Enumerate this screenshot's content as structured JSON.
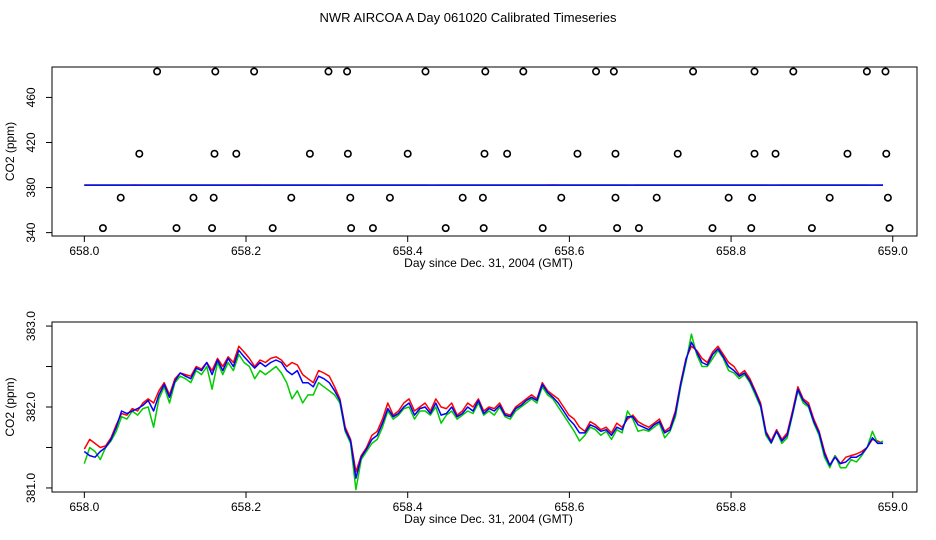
{
  "title": "NWR AIRCOA A  Day 061020  Calibrated Timeseries",
  "chart_data": [
    {
      "type": "scatter",
      "title": "",
      "xlabel": "Day since Dec. 31, 2004 (GMT)",
      "ylabel": "CO2 (ppm)",
      "xlim": [
        657.96,
        659.03
      ],
      "ylim": [
        337,
        487
      ],
      "xticks": [
        658.0,
        658.2,
        658.4,
        658.6,
        658.8,
        659.0
      ],
      "xtick_labels": [
        "658.0",
        "658.2",
        "658.4",
        "658.6",
        "658.8",
        "659.0"
      ],
      "yticks": [
        340,
        380,
        420,
        460
      ],
      "ytick_labels": [
        "340",
        "380",
        "420",
        "460"
      ],
      "points_x": [
        658.09,
        658.162,
        658.21,
        658.302,
        658.325,
        658.422,
        658.496,
        658.543,
        658.633,
        658.655,
        658.753,
        658.829,
        658.877,
        658.968,
        658.991,
        658.068,
        658.161,
        658.188,
        658.279,
        658.326,
        658.4,
        658.495,
        658.523,
        658.61,
        658.657,
        658.734,
        658.829,
        658.855,
        658.944,
        658.992,
        658.045,
        658.135,
        658.16,
        658.256,
        658.329,
        658.378,
        658.468,
        658.493,
        658.59,
        658.657,
        658.708,
        658.797,
        658.826,
        658.922,
        658.994,
        658.023,
        658.114,
        658.158,
        658.233,
        658.33,
        658.357,
        658.447,
        658.494,
        658.567,
        658.659,
        658.686,
        658.777,
        658.825,
        658.9,
        658.996
      ],
      "points_y": [
        483,
        483,
        483,
        483,
        483,
        483,
        483,
        483,
        483,
        483,
        483,
        483,
        483,
        483,
        483,
        410,
        410,
        410,
        410,
        410,
        410,
        410,
        410,
        410,
        410,
        410,
        410,
        410,
        410,
        410,
        371,
        371,
        371,
        371,
        371,
        371,
        371,
        371,
        371,
        371,
        371,
        371,
        371,
        371,
        371,
        344,
        344,
        344,
        344,
        344,
        344,
        344,
        344,
        344,
        344,
        344,
        344,
        344,
        344,
        344
      ],
      "series": [
        {
          "name": "red",
          "color": "#ff0000",
          "x_start": 658.0,
          "x_end": 658.988,
          "values": [
            382.2,
            382.2,
            382.2,
            382.2,
            382.2,
            382.3,
            382.2,
            382.2,
            382.2,
            382.2,
            382.2,
            382.2,
            382.2,
            382.2,
            382.2,
            382.2,
            382.2,
            382.3,
            382.2,
            382.2,
            382.2,
            382.2,
            382.2,
            382.2,
            382.2,
            382.2,
            382.2,
            382.2,
            382.2,
            382.2,
            382.2,
            382.2,
            382.2,
            382.2,
            382.2,
            382.2,
            382.2,
            382.2,
            382.2,
            382.2,
            382.2,
            382.2,
            382.2,
            382.2,
            382.2,
            382.2,
            382.2,
            382.3,
            382.2,
            382.2,
            382.2,
            382.2,
            382.2,
            382.2,
            382.2,
            382.2,
            382.2,
            382.2,
            382.2,
            382.2,
            382.2,
            382.2,
            382.2,
            382.2,
            382.2,
            382.2,
            382.2,
            382.2,
            382.2,
            382.2,
            382.2,
            382.2,
            382.2,
            382.2,
            382.2,
            382.2,
            382.2,
            382.2,
            382.2,
            382.2,
            382.2
          ]
        },
        {
          "name": "green",
          "color": "#00cc00",
          "x_start": 658.0,
          "x_end": 658.988,
          "values": [
            382.2,
            382.2,
            382.2,
            382.2,
            382.2,
            382.1,
            382.2,
            382.2,
            382.2,
            382.2,
            382.2,
            382.2,
            382.2,
            382.2,
            382.2,
            382.2,
            382.2,
            382.1,
            382.2,
            382.2,
            382.2,
            382.2,
            382.2,
            382.2,
            382.2,
            382.1,
            382.2,
            382.2,
            382.2,
            382.2,
            382.2,
            382.2,
            382.2,
            382.2,
            382.2,
            382.1,
            382.2,
            382.2,
            382.2,
            382.2,
            382.2,
            382.2,
            382.2,
            382.2,
            382.2,
            382.2,
            382.2,
            382.2,
            382.2,
            382.2,
            382.2,
            382.2,
            382.2,
            382.2,
            382.2,
            382.1,
            382.2,
            382.2,
            382.2,
            382.2,
            382.2,
            382.2,
            382.2,
            382.2,
            382.2,
            382.2,
            382.2,
            382.2,
            382.2,
            382.1,
            382.2,
            382.2,
            382.2,
            382.2,
            382.2,
            382.2,
            382.2,
            382.2,
            382.2,
            382.1,
            382.2
          ]
        },
        {
          "name": "blue",
          "color": "#0000ff",
          "x_start": 658.0,
          "x_end": 658.988,
          "values": [
            382.2,
            382.2,
            382.2,
            382.2,
            382.2,
            382.2,
            382.2,
            382.2,
            382.2,
            382.2,
            382.2,
            382.2,
            382.2,
            382.2,
            382.2,
            382.2,
            382.2,
            382.2,
            382.2,
            382.2,
            382.2,
            382.2,
            382.2,
            382.2,
            382.2,
            382.2,
            382.2,
            382.2,
            382.2,
            382.2,
            382.2,
            382.2,
            382.2,
            382.2,
            382.2,
            382.2,
            382.2,
            382.2,
            382.2,
            382.2,
            382.2,
            382.2,
            382.2,
            382.2,
            382.2,
            382.2,
            382.2,
            382.2,
            382.2,
            382.2,
            382.2,
            382.2,
            382.2,
            382.2,
            382.2,
            382.2,
            382.2,
            382.2,
            382.2,
            382.2,
            382.2,
            382.2,
            382.2,
            382.2,
            382.2,
            382.2,
            382.2,
            382.2,
            382.2,
            382.2,
            382.2,
            382.2,
            382.2,
            382.2,
            382.2,
            382.2,
            382.2,
            382.2,
            382.2,
            382.2,
            382.2
          ]
        }
      ]
    },
    {
      "type": "line",
      "title": "",
      "xlabel": "Day since Dec. 31, 2004 (GMT)",
      "ylabel": "CO2 (ppm)",
      "xlim": [
        657.96,
        659.03
      ],
      "ylim": [
        380.95,
        383.05
      ],
      "xticks": [
        658.0,
        658.2,
        658.4,
        658.6,
        658.8,
        659.0
      ],
      "xtick_labels": [
        "658.0",
        "658.2",
        "658.4",
        "658.6",
        "658.8",
        "659.0"
      ],
      "yticks": [
        381.0,
        381.5,
        382.0,
        382.5,
        383.0
      ],
      "ytick_labels": [
        "381.0",
        "",
        "382.0",
        "",
        "383.0"
      ],
      "series": [
        {
          "name": "red",
          "color": "#ff0000",
          "x_start": 658.0,
          "x_end": 658.988,
          "values": [
            381.48,
            381.6,
            381.55,
            381.5,
            381.52,
            381.62,
            381.78,
            381.92,
            381.9,
            381.98,
            381.95,
            382.05,
            382.1,
            382.05,
            382.2,
            382.3,
            382.15,
            382.35,
            382.42,
            382.4,
            382.38,
            382.5,
            382.47,
            382.55,
            382.45,
            382.6,
            382.5,
            382.62,
            382.55,
            382.75,
            382.68,
            382.6,
            382.5,
            382.58,
            382.55,
            382.6,
            382.62,
            382.58,
            382.5,
            382.55,
            382.52,
            382.4,
            382.35,
            382.3,
            382.45,
            382.42,
            382.38,
            382.25,
            382.1,
            381.75,
            381.6,
            381.2,
            381.4,
            381.5,
            381.65,
            381.7,
            381.85,
            382.05,
            381.9,
            381.95,
            382.05,
            382.1,
            381.95,
            382.0,
            382.05,
            381.95,
            382.1,
            382.0,
            381.98,
            382.05,
            381.9,
            381.95,
            382.05,
            382.0,
            382.1,
            381.95,
            382.0,
            381.98,
            382.05,
            381.92,
            381.9,
            382.0,
            382.05,
            382.1,
            382.15,
            382.1,
            382.3,
            382.2,
            382.15,
            382.1,
            382.0,
            381.9,
            381.85,
            381.75,
            381.7,
            381.82,
            381.78,
            381.72,
            381.75,
            381.68,
            381.8,
            381.75,
            381.85,
            381.9,
            381.82,
            381.78,
            381.75,
            381.8,
            381.85,
            381.7,
            381.75,
            381.95,
            382.3,
            382.6,
            382.75,
            382.7,
            382.6,
            382.55,
            382.68,
            382.75,
            382.65,
            382.55,
            382.5,
            382.4,
            382.45,
            382.35,
            382.2,
            382.05,
            381.7,
            381.58,
            381.72,
            381.6,
            381.68,
            381.95,
            382.25,
            382.1,
            382.05,
            381.85,
            381.7,
            381.45,
            381.28,
            381.4,
            381.3,
            381.38,
            381.4,
            381.42,
            381.45,
            381.5,
            381.6,
            381.58,
            381.55
          ]
        },
        {
          "name": "green",
          "color": "#00cc00",
          "x_start": 658.0,
          "x_end": 658.988,
          "values": [
            381.3,
            381.5,
            381.45,
            381.35,
            381.5,
            381.58,
            381.7,
            381.88,
            381.85,
            381.95,
            381.9,
            381.98,
            382.0,
            381.75,
            382.1,
            382.25,
            382.05,
            382.3,
            382.38,
            382.35,
            382.3,
            382.45,
            382.4,
            382.5,
            382.22,
            382.55,
            382.4,
            382.55,
            382.45,
            382.65,
            382.55,
            382.5,
            382.35,
            382.45,
            382.4,
            382.45,
            382.5,
            382.42,
            382.3,
            382.1,
            382.2,
            382.05,
            382.15,
            382.15,
            382.3,
            382.25,
            382.2,
            382.15,
            382.05,
            381.7,
            381.55,
            380.98,
            381.35,
            381.45,
            381.55,
            381.6,
            381.75,
            381.95,
            381.85,
            381.9,
            381.98,
            382.0,
            381.85,
            381.95,
            381.95,
            381.9,
            382.0,
            381.8,
            381.9,
            381.95,
            381.85,
            381.9,
            381.95,
            381.92,
            382.05,
            381.9,
            381.95,
            381.9,
            382.0,
            381.88,
            381.85,
            381.95,
            382.0,
            382.05,
            382.1,
            382.05,
            382.25,
            382.15,
            382.1,
            382.0,
            381.9,
            381.8,
            381.7,
            381.58,
            381.65,
            381.75,
            381.72,
            381.65,
            381.7,
            381.6,
            381.72,
            381.68,
            381.95,
            381.85,
            381.7,
            381.72,
            381.7,
            381.75,
            381.8,
            381.62,
            381.7,
            381.88,
            382.25,
            382.55,
            382.9,
            382.65,
            382.5,
            382.5,
            382.6,
            382.7,
            382.6,
            382.45,
            382.42,
            382.35,
            382.4,
            382.3,
            382.15,
            382.0,
            381.65,
            381.55,
            381.7,
            381.55,
            381.62,
            381.9,
            382.2,
            382.05,
            382.0,
            381.8,
            381.65,
            381.38,
            381.25,
            381.4,
            381.25,
            381.25,
            381.35,
            381.32,
            381.4,
            381.5,
            381.7,
            381.55,
            381.58
          ]
        },
        {
          "name": "blue",
          "color": "#0000ff",
          "x_start": 658.0,
          "x_end": 658.988,
          "values": [
            381.45,
            381.4,
            381.38,
            381.45,
            381.5,
            381.6,
            381.75,
            381.95,
            381.92,
            381.95,
            381.98,
            382.02,
            382.08,
            381.95,
            382.15,
            382.28,
            382.12,
            382.32,
            382.42,
            382.38,
            382.35,
            382.48,
            382.45,
            382.55,
            382.4,
            382.58,
            382.45,
            382.6,
            382.5,
            382.7,
            382.62,
            382.55,
            382.48,
            382.55,
            382.5,
            382.55,
            382.58,
            382.55,
            382.45,
            382.4,
            382.45,
            382.3,
            382.3,
            382.25,
            382.38,
            382.35,
            382.3,
            382.2,
            382.08,
            381.72,
            381.58,
            381.12,
            381.38,
            381.48,
            381.6,
            381.65,
            381.8,
            381.98,
            381.88,
            381.92,
            382.0,
            382.05,
            381.9,
            381.98,
            382.0,
            381.92,
            382.05,
            381.9,
            381.92,
            382.0,
            381.88,
            381.92,
            382.0,
            381.95,
            382.08,
            381.92,
            381.98,
            381.95,
            382.02,
            381.9,
            381.88,
            381.98,
            382.02,
            382.08,
            382.12,
            382.08,
            382.28,
            382.18,
            382.12,
            382.05,
            381.95,
            381.85,
            381.78,
            381.68,
            381.68,
            381.78,
            381.75,
            381.7,
            381.72,
            381.65,
            381.75,
            381.72,
            381.88,
            381.88,
            381.78,
            381.75,
            381.72,
            381.78,
            381.82,
            381.68,
            381.72,
            381.92,
            382.28,
            382.58,
            382.8,
            382.68,
            382.55,
            382.52,
            382.65,
            382.72,
            382.62,
            382.5,
            382.45,
            382.38,
            382.42,
            382.32,
            382.18,
            382.02,
            381.68,
            381.56,
            381.7,
            381.58,
            381.65,
            381.92,
            382.22,
            382.08,
            382.02,
            381.82,
            381.68,
            381.42,
            381.28,
            381.38,
            381.3,
            381.32,
            381.38,
            381.38,
            381.42,
            381.5,
            381.62,
            381.55,
            381.55
          ]
        }
      ]
    }
  ]
}
